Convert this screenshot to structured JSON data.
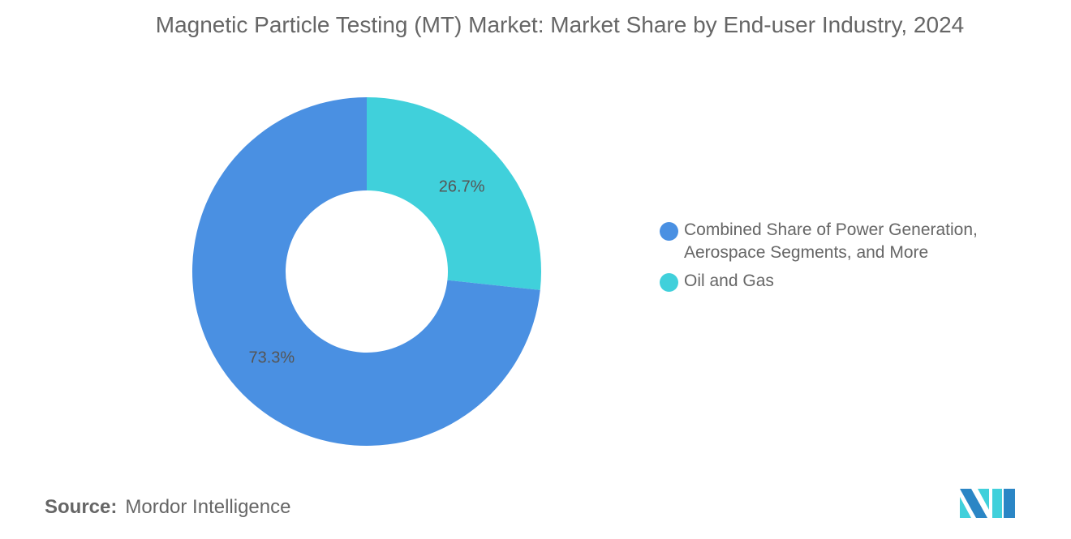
{
  "chart_data": {
    "type": "pie",
    "donut": true,
    "title": "Magnetic Particle Testing (MT) Market: Market Share by End-user Industry, 2024",
    "slices": [
      {
        "label": "Oil and Gas",
        "value": 26.7,
        "data_label": "26.7%",
        "color": "#40d0db"
      },
      {
        "label": "Combined Share of Power Generation, Aerospace Segments, and More",
        "value": 73.3,
        "data_label": "73.3%",
        "color": "#4a90e2"
      }
    ],
    "legend": {
      "position": "right",
      "entries": [
        "Combined Share of Power Generation, Aerospace Segments, and More",
        "Oil and Gas"
      ]
    }
  },
  "source": {
    "label": "Source:",
    "value": "Mordor Intelligence"
  },
  "logo": {
    "name": "mordor-intelligence-logo",
    "colors": [
      "#2b86c5",
      "#40d0db"
    ]
  }
}
